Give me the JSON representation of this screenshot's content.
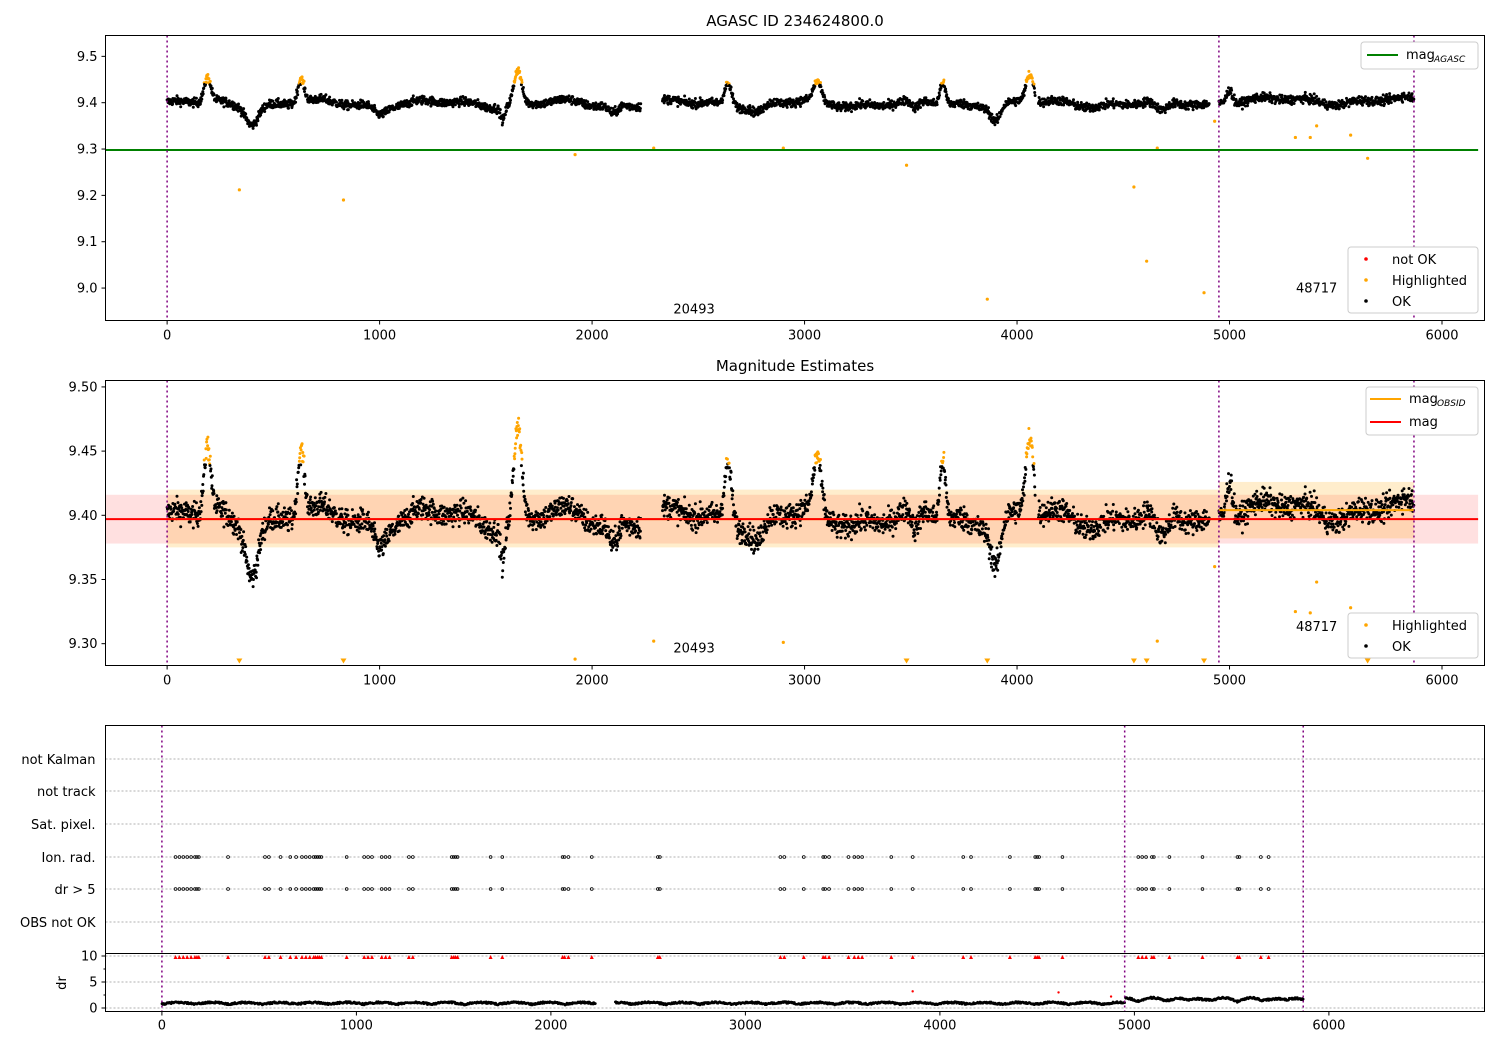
{
  "chart_data": [
    {
      "type": "scatter",
      "title": "AGASC ID 234624800.0",
      "xlim": [
        -290,
        6200
      ],
      "ylim": [
        8.93,
        9.545
      ],
      "xticks": [
        0,
        1000,
        2000,
        3000,
        4000,
        5000,
        6000
      ],
      "yticks": [
        9.0,
        9.1,
        9.2,
        9.3,
        9.4,
        9.5
      ],
      "ytick_labels": [
        "9.0",
        "9.1",
        "9.2",
        "9.3",
        "9.4",
        "9.5"
      ],
      "vlines": [
        0,
        4950,
        5868
      ],
      "obsid_labels": [
        {
          "text": "20493",
          "x": 2480,
          "y": 8.945
        },
        {
          "text": "48717",
          "x": 5410,
          "y": 8.99
        }
      ],
      "hlines": [
        {
          "name": "mag",
          "subscript": "AGASC",
          "value": 9.298,
          "x_from": -290,
          "x_to": 6170,
          "color": "#008000"
        }
      ],
      "legend_lines": [
        {
          "name": "mag",
          "subscript": "AGASC",
          "color": "#008000"
        }
      ],
      "legend_points": [
        {
          "name": "not OK",
          "color": "#ff0000"
        },
        {
          "name": "Highlighted",
          "color": "#ffa500"
        },
        {
          "name": "OK",
          "color": "#000000"
        }
      ],
      "legend_lines_position": "upper right",
      "legend_points_position": "lower right",
      "ok_color": "#000000",
      "highlight_color": "#ffa500",
      "outliers": [
        [
          340,
          9.212
        ],
        [
          830,
          9.19
        ],
        [
          1920,
          9.288
        ],
        [
          2290,
          9.302
        ],
        [
          2900,
          9.302
        ],
        [
          3480,
          9.265
        ],
        [
          3860,
          8.976
        ],
        [
          4550,
          9.218
        ],
        [
          4610,
          9.058
        ],
        [
          4660,
          9.302
        ],
        [
          4880,
          8.99
        ],
        [
          4930,
          9.36
        ],
        [
          5310,
          9.325
        ],
        [
          5380,
          9.325
        ],
        [
          5410,
          9.35
        ],
        [
          5570,
          9.33
        ],
        [
          5650,
          9.28
        ]
      ]
    },
    {
      "type": "scatter",
      "title": "Magnitude Estimates",
      "xlim": [
        -290,
        6200
      ],
      "ylim": [
        9.283,
        9.505
      ],
      "xticks": [
        0,
        1000,
        2000,
        3000,
        4000,
        5000,
        6000
      ],
      "yticks": [
        9.3,
        9.35,
        9.4,
        9.45,
        9.5
      ],
      "ytick_labels": [
        "9.30",
        "9.35",
        "9.40",
        "9.45",
        "9.50"
      ],
      "vlines": [
        0,
        4950,
        5868
      ],
      "obsid_labels": [
        {
          "text": "20493",
          "x": 2480,
          "y": 9.293
        },
        {
          "text": "48717",
          "x": 5410,
          "y": 9.31
        }
      ],
      "hlines": [
        {
          "name": "mag",
          "subscript": "OBSID",
          "value": 9.397,
          "x_from": 0,
          "x_to": 4950,
          "color": "#ffa500"
        },
        {
          "name": "mag",
          "subscript": "OBSID",
          "value": 9.404,
          "x_from": 4950,
          "x_to": 5868,
          "color": "#ffa500"
        },
        {
          "name": "mag",
          "value": 9.397,
          "x_from": -290,
          "x_to": 6170,
          "color": "#ff0000"
        }
      ],
      "bands": [
        {
          "x_from": -290,
          "x_to": 6170,
          "y_from": 9.378,
          "y_to": 9.416,
          "color": "#ff0000",
          "opacity": 0.12
        },
        {
          "x_from": 0,
          "x_to": 4950,
          "y_from": 9.375,
          "y_to": 9.42,
          "color": "#ffa500",
          "opacity": 0.2
        },
        {
          "x_from": 4950,
          "x_to": 5868,
          "y_from": 9.382,
          "y_to": 9.426,
          "color": "#ffa500",
          "opacity": 0.2
        }
      ],
      "legend_lines": [
        {
          "name": "mag",
          "subscript": "OBSID",
          "color": "#ffa500"
        },
        {
          "name": "mag",
          "color": "#ff0000"
        }
      ],
      "legend_points": [
        {
          "name": "Highlighted",
          "color": "#ffa500"
        },
        {
          "name": "OK",
          "color": "#000000"
        }
      ],
      "legend_lines_position": "upper right",
      "legend_points_position": "lower right",
      "ok_color": "#000000",
      "highlight_color": "#ffa500",
      "outliers": [
        [
          1920,
          9.288
        ],
        [
          2290,
          9.302
        ],
        [
          2900,
          9.301
        ],
        [
          4660,
          9.302
        ],
        [
          4930,
          9.36
        ],
        [
          5310,
          9.325
        ],
        [
          5380,
          9.324
        ],
        [
          5410,
          9.348
        ],
        [
          5570,
          9.328
        ]
      ],
      "clipped_markers_x": [
        340,
        830,
        3480,
        3860,
        4550,
        4610,
        4880,
        5650
      ]
    },
    {
      "type": "scatter",
      "title": "",
      "xlim": [
        -290,
        6800
      ],
      "xticks": [
        0,
        1000,
        2000,
        3000,
        4000,
        5000,
        6000
      ],
      "vlines": [
        0,
        4950,
        5868
      ],
      "flag_rows": [
        "not Kalman",
        "not track",
        "Sat. pixel.",
        "Ion. rad.",
        "dr > 5",
        "OBS not OK"
      ],
      "flag_x": [
        70,
        90,
        110,
        130,
        150,
        170,
        180,
        190,
        340,
        530,
        550,
        610,
        660,
        690,
        720,
        740,
        760,
        780,
        790,
        800,
        810,
        820,
        950,
        1040,
        1060,
        1080,
        1130,
        1150,
        1170,
        1270,
        1290,
        1490,
        1500,
        1510,
        1520,
        1690,
        1750,
        2060,
        2070,
        2090,
        2210,
        2550,
        2560,
        3180,
        3200,
        3300,
        3400,
        3410,
        3430,
        3530,
        3560,
        3580,
        3600,
        3750,
        3860,
        4120,
        4160,
        4360,
        4490,
        4500,
        4510,
        4630,
        5020,
        5040,
        5060,
        5090,
        5100,
        5180,
        5350,
        5530,
        5540,
        5650,
        5690
      ],
      "dr_label": "dr",
      "dr_yticks": [
        0,
        5,
        10
      ],
      "dr_ylim": [
        -0.6,
        10
      ],
      "dr_flag_value": 9.8,
      "dr_spikes": [
        [
          3860,
          3.2
        ],
        [
          4610,
          3.0
        ],
        [
          4880,
          2.2
        ]
      ],
      "colors": {
        "flag": "#000000",
        "dr_flag": "#ff0000",
        "dr": "#000000"
      }
    }
  ]
}
